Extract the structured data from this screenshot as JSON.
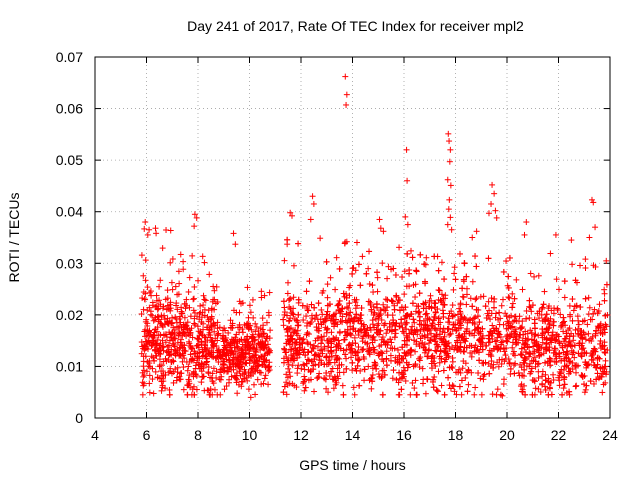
{
  "chart_data": {
    "type": "scatter",
    "title": "Day 241 of 2017, Rate Of TEC Index for receiver mpl2",
    "xlabel": "GPS time / hours",
    "ylabel": "ROTI / TECUs",
    "xlim": [
      4,
      24
    ],
    "ylim": [
      0,
      0.07
    ],
    "xticks": [
      4,
      6,
      8,
      10,
      12,
      14,
      16,
      18,
      20,
      22,
      24
    ],
    "yticks": [
      0,
      0.01,
      0.02,
      0.03,
      0.04,
      0.05,
      0.06,
      0.07
    ],
    "xtick_labels": [
      "4",
      "6",
      "8",
      "10",
      "12",
      "14",
      "16",
      "18",
      "20",
      "22",
      "24"
    ],
    "ytick_labels": [
      "0",
      "0.01",
      "0.02",
      "0.03",
      "0.04",
      "0.05",
      "0.06",
      "0.07"
    ],
    "grid": true,
    "marker": "plus",
    "color": "#ff0000",
    "coverage": [
      [
        5.8,
        10.8
      ],
      [
        11.3,
        23.9
      ]
    ],
    "series": [
      {
        "name": "ROTI",
        "points": [
          [
            13.72,
            0.0662
          ],
          [
            13.78,
            0.0627
          ],
          [
            13.75,
            0.0607
          ],
          [
            17.72,
            0.0551
          ],
          [
            17.75,
            0.0537
          ],
          [
            17.8,
            0.052
          ],
          [
            17.78,
            0.0497
          ],
          [
            17.7,
            0.0462
          ],
          [
            17.82,
            0.0451
          ],
          [
            17.76,
            0.0423
          ],
          [
            17.74,
            0.0405
          ],
          [
            17.8,
            0.0389
          ],
          [
            17.7,
            0.0375
          ],
          [
            17.85,
            0.0365
          ],
          [
            16.1,
            0.052
          ],
          [
            16.12,
            0.046
          ],
          [
            16.05,
            0.039
          ],
          [
            16.15,
            0.0375
          ],
          [
            19.42,
            0.0452
          ],
          [
            19.5,
            0.0435
          ],
          [
            19.38,
            0.0415
          ],
          [
            19.55,
            0.0402
          ],
          [
            19.3,
            0.0397
          ],
          [
            19.6,
            0.0388
          ],
          [
            12.45,
            0.043
          ],
          [
            12.5,
            0.0415
          ],
          [
            12.38,
            0.0385
          ],
          [
            11.58,
            0.0398
          ],
          [
            11.65,
            0.0392
          ],
          [
            7.88,
            0.0395
          ],
          [
            7.95,
            0.0388
          ],
          [
            7.85,
            0.0372
          ],
          [
            23.3,
            0.0423
          ],
          [
            23.35,
            0.0418
          ],
          [
            23.42,
            0.037
          ],
          [
            23.2,
            0.035
          ],
          [
            5.95,
            0.038
          ],
          [
            6.05,
            0.0355
          ],
          [
            6.1,
            0.0365
          ],
          [
            6.35,
            0.0368
          ],
          [
            20.75,
            0.038
          ],
          [
            20.68,
            0.0355
          ],
          [
            15.05,
            0.0385
          ],
          [
            15.1,
            0.0368
          ],
          [
            15.2,
            0.0362
          ],
          [
            9.38,
            0.0358
          ],
          [
            9.45,
            0.0337
          ],
          [
            18.65,
            0.035
          ],
          [
            18.82,
            0.0362
          ],
          [
            21.9,
            0.0355
          ],
          [
            22.5,
            0.0345
          ],
          [
            9.52,
            0.0048
          ],
          [
            10.05,
            0.004
          ],
          [
            19.82,
            0.0043
          ],
          [
            13.05,
            0.005
          ],
          [
            16.4,
            0.0058
          ],
          [
            22.2,
            0.0058
          ],
          [
            23.75,
            0.0065
          ],
          [
            7.45,
            0.0055
          ]
        ]
      }
    ]
  }
}
